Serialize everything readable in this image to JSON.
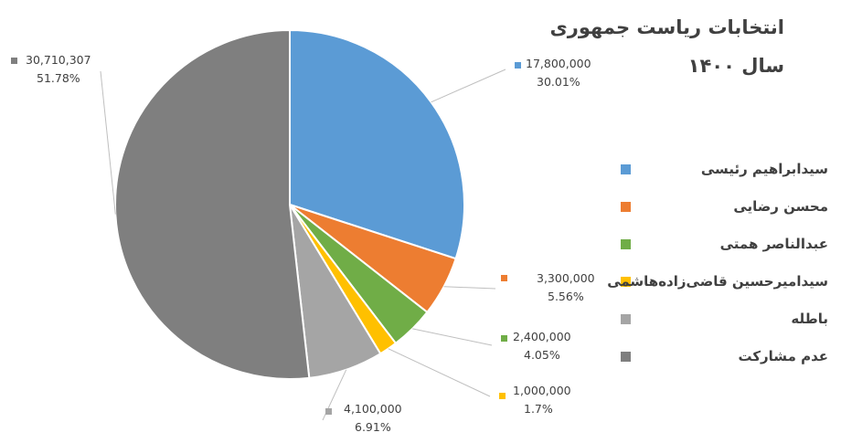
{
  "chart_data": {
    "type": "pie",
    "title_line1": "انتخابات ریاست جمهوری",
    "title_line2": "سال ۱۴۰۰",
    "legend_position": "right",
    "slices": [
      {
        "name": "سیدابراهیم رئیسی",
        "value": 17800000,
        "value_label": "17,800,000",
        "percent_label": "30.01%",
        "color": "#5B9BD5"
      },
      {
        "name": "محسن رضایی",
        "value": 3300000,
        "value_label": "3,300,000",
        "percent_label": "5.56%",
        "color": "#ED7D31"
      },
      {
        "name": "عبدالناصر همتی",
        "value": 2400000,
        "value_label": "2,400,000",
        "percent_label": "4.05%",
        "color": "#70AD47"
      },
      {
        "name": "سیدامیرحسین قاضی‌زاده‌هاشمی",
        "value": 1000000,
        "value_label": "1,000,000",
        "percent_label": "1.7%",
        "color": "#FFC000"
      },
      {
        "name": "باطله",
        "value": 4100000,
        "value_label": "4,100,000",
        "percent_label": "6.91%",
        "color": "#A5A5A5"
      },
      {
        "name": "عدم مشارکت",
        "value": 30710307,
        "value_label": "30,710,307",
        "percent_label": "51.78%",
        "color": "#7F7F7F"
      }
    ]
  }
}
